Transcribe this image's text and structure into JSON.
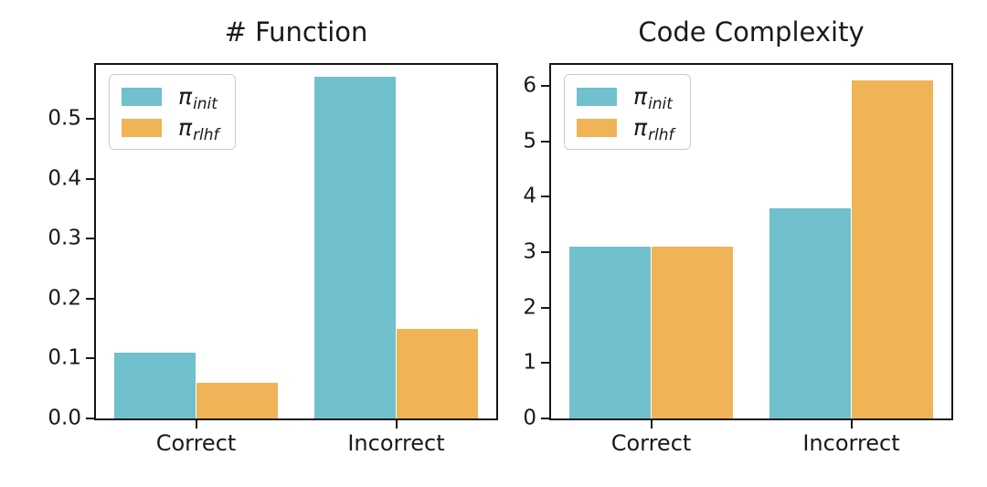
{
  "colors": {
    "series_init": "#70c0ce",
    "series_rlhf": "#f0b356",
    "axis": "#161616",
    "background": "#ffffff",
    "legend_border": "#cccccc"
  },
  "chart_data": [
    {
      "type": "bar",
      "title": "# Function",
      "categories": [
        "Correct",
        "Incorrect"
      ],
      "series": [
        {
          "name": "pi_init",
          "label_base": "π",
          "label_sub": "init",
          "color": "#70c0ce",
          "values": [
            0.11,
            0.57
          ]
        },
        {
          "name": "pi_rlhf",
          "label_base": "π",
          "label_sub": "rlhf",
          "color": "#f0b356",
          "values": [
            0.06,
            0.15
          ]
        }
      ],
      "xlabel": "",
      "ylabel": "",
      "ylim": [
        0,
        0.59
      ],
      "yticks": [
        {
          "value": 0.0,
          "label": "0.0"
        },
        {
          "value": 0.1,
          "label": "0.1"
        },
        {
          "value": 0.2,
          "label": "0.2"
        },
        {
          "value": 0.3,
          "label": "0.3"
        },
        {
          "value": 0.4,
          "label": "0.4"
        },
        {
          "value": 0.5,
          "label": "0.5"
        }
      ],
      "grid": false,
      "legend_position": "upper left",
      "layout": {
        "group_centers_pct": [
          25,
          75
        ],
        "bar_width_pct": 20.5
      }
    },
    {
      "type": "bar",
      "title": "Code Complexity",
      "categories": [
        "Correct",
        "Incorrect"
      ],
      "series": [
        {
          "name": "pi_init",
          "label_base": "π",
          "label_sub": "init",
          "color": "#70c0ce",
          "values": [
            3.1,
            3.8
          ]
        },
        {
          "name": "pi_rlhf",
          "label_base": "π",
          "label_sub": "rlhf",
          "color": "#f0b356",
          "values": [
            3.1,
            6.1
          ]
        }
      ],
      "xlabel": "",
      "ylabel": "",
      "ylim": [
        0,
        6.38
      ],
      "yticks": [
        {
          "value": 0,
          "label": "0"
        },
        {
          "value": 1,
          "label": "1"
        },
        {
          "value": 2,
          "label": "2"
        },
        {
          "value": 3,
          "label": "3"
        },
        {
          "value": 4,
          "label": "4"
        },
        {
          "value": 5,
          "label": "5"
        },
        {
          "value": 6,
          "label": "6"
        }
      ],
      "grid": false,
      "legend_position": "upper left",
      "layout": {
        "group_centers_pct": [
          25,
          75
        ],
        "bar_width_pct": 20.5
      }
    }
  ]
}
